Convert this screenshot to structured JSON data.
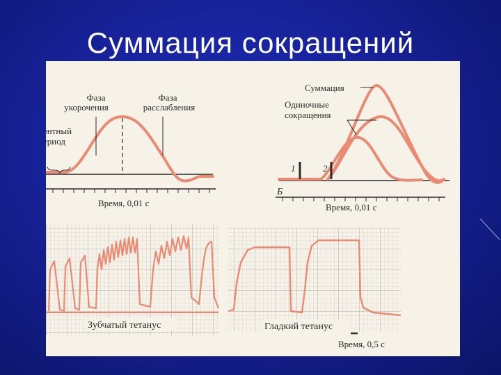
{
  "slide": {
    "title": "Суммация сокращений"
  },
  "panel_a": {
    "phase_shortening": [
      "Фаза",
      "укорочения"
    ],
    "phase_relaxation": [
      "Фаза",
      "расслабления"
    ],
    "latent_period": [
      "ентный",
      "ериод"
    ],
    "time_axis_label": "Время, 0,01 с"
  },
  "panel_b": {
    "panel_letter": "Б",
    "summation": "Суммация",
    "single_twitches": [
      "Одиночные",
      "сокращения"
    ],
    "stimulus_1": "1",
    "stimulus_2": "2",
    "time_axis_label": "Время, 0,01 с"
  },
  "tetanus": {
    "serrated_label": "Зубчатый тетанус",
    "smooth_label": "Гладкий тетанус",
    "time_axis_label": "Время, 0,5 с"
  },
  "colors": {
    "background": "#1a27a8",
    "figure_paper": "#f7f2e8",
    "curve": "#ea8a72",
    "grid": "#b9b9b9",
    "ink": "#2b2b2b"
  }
}
